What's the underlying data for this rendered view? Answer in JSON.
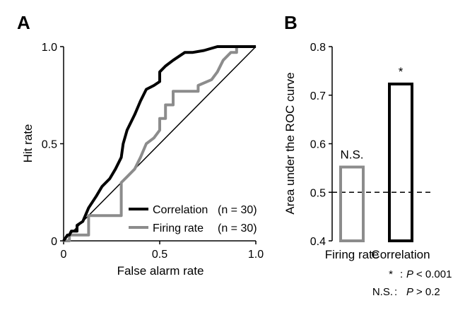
{
  "panels": {
    "a_letter": "A",
    "b_letter": "B"
  },
  "chart_data": [
    {
      "type": "line",
      "xlabel": "False alarm rate",
      "ylabel": "Hit rate",
      "xlim": [
        0,
        1
      ],
      "ylim": [
        0,
        1
      ],
      "x_ticks": [
        0,
        0.5,
        1
      ],
      "x_tick_labels": [
        "0",
        "0.5",
        "1.0"
      ],
      "y_ticks": [
        0,
        0.5,
        1
      ],
      "y_tick_labels": [
        "0",
        "0.5",
        "1.0"
      ],
      "legend_position": "bottom-right",
      "reference_line": "diagonal",
      "series": [
        {
          "name": "Correlation",
          "n_label": "(n = 30)",
          "color": "#000000",
          "step": false,
          "points": [
            [
              0,
              0
            ],
            [
              0.02,
              0.03
            ],
            [
              0.03,
              0.03
            ],
            [
              0.04,
              0.05
            ],
            [
              0.07,
              0.05
            ],
            [
              0.07,
              0.08
            ],
            [
              0.1,
              0.1
            ],
            [
              0.13,
              0.17
            ],
            [
              0.17,
              0.23
            ],
            [
              0.2,
              0.28
            ],
            [
              0.24,
              0.32
            ],
            [
              0.27,
              0.37
            ],
            [
              0.3,
              0.43
            ],
            [
              0.31,
              0.5
            ],
            [
              0.33,
              0.57
            ],
            [
              0.37,
              0.65
            ],
            [
              0.4,
              0.72
            ],
            [
              0.43,
              0.78
            ],
            [
              0.47,
              0.8
            ],
            [
              0.5,
              0.82
            ],
            [
              0.5,
              0.87
            ],
            [
              0.53,
              0.9
            ],
            [
              0.57,
              0.93
            ],
            [
              0.6,
              0.95
            ],
            [
              0.63,
              0.97
            ],
            [
              0.67,
              0.97
            ],
            [
              0.73,
              0.98
            ],
            [
              0.8,
              1.0
            ],
            [
              1.0,
              1.0
            ]
          ]
        },
        {
          "name": "Firing rate",
          "n_label": "(n = 30)",
          "color": "#8c8c8c",
          "step": true,
          "points": [
            [
              0,
              0
            ],
            [
              0.03,
              0.0
            ],
            [
              0.03,
              0.03
            ],
            [
              0.13,
              0.03
            ],
            [
              0.13,
              0.13
            ],
            [
              0.3,
              0.13
            ],
            [
              0.3,
              0.3
            ],
            [
              0.33,
              0.33
            ],
            [
              0.37,
              0.37
            ],
            [
              0.4,
              0.43
            ],
            [
              0.43,
              0.5
            ],
            [
              0.47,
              0.53
            ],
            [
              0.5,
              0.57
            ],
            [
              0.5,
              0.63
            ],
            [
              0.53,
              0.63
            ],
            [
              0.53,
              0.7
            ],
            [
              0.57,
              0.7
            ],
            [
              0.57,
              0.77
            ],
            [
              0.7,
              0.77
            ],
            [
              0.7,
              0.8
            ],
            [
              0.77,
              0.83
            ],
            [
              0.8,
              0.87
            ],
            [
              0.83,
              0.93
            ],
            [
              0.87,
              0.97
            ],
            [
              0.9,
              0.97
            ],
            [
              0.9,
              1.0
            ],
            [
              1.0,
              1.0
            ]
          ]
        }
      ]
    },
    {
      "type": "bar",
      "ylabel": "Area under the ROC curve",
      "ylim": [
        0.4,
        0.8
      ],
      "y_ticks": [
        0.4,
        0.5,
        0.6,
        0.7,
        0.8
      ],
      "y_tick_labels": [
        "0.4",
        "0.5",
        "0.6",
        "0.7",
        "0.8"
      ],
      "categories": [
        "Firing rate",
        "Correlation"
      ],
      "values": [
        0.552,
        0.723
      ],
      "bar_colors": [
        "#8c8c8c",
        "#000000"
      ],
      "bar_fill": "none",
      "reference_value": 0.5,
      "reference_style": "dashed",
      "annotations": [
        "N.S.",
        "*"
      ],
      "notes": [
        {
          "mark": "*",
          "sep": ":",
          "stat": "P",
          "rel": "< 0.001"
        },
        {
          "mark": "N.S.",
          "sep": ":",
          "stat": "P",
          "rel": "> 0.2"
        }
      ]
    }
  ]
}
